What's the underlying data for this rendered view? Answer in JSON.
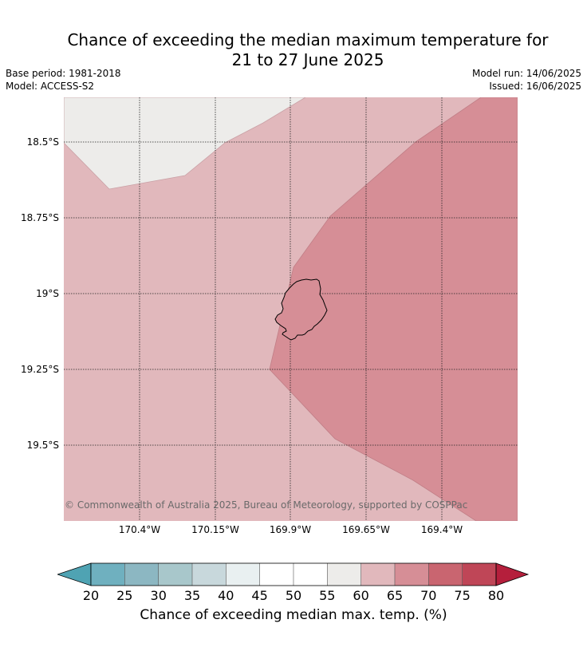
{
  "title_line1": "Chance of exceeding the median maximum temperature for",
  "title_line2": "21 to 27 June 2025",
  "base_period": "Base period: 1981-2018",
  "model": "Model: ACCESS-S2",
  "model_run": "Model run: 14/06/2025",
  "issued": "Issued: 16/06/2025",
  "lat_labels": [
    "18.5°S",
    "18.75°S",
    "19°S",
    "19.25°S",
    "19.5°S"
  ],
  "lon_labels": [
    "170.4°W",
    "170.15°W",
    "169.9°W",
    "169.65°W",
    "169.4°W"
  ],
  "copyright": "© Commonwealth of Australia 2025, Bureau of Meteorology, supported by COSPPac",
  "colorbar": {
    "ticks": [
      "20",
      "25",
      "30",
      "35",
      "40",
      "45",
      "50",
      "55",
      "60",
      "65",
      "70",
      "75",
      "80"
    ],
    "label": "Chance of exceeding median max. temp. (%)",
    "colors": [
      "#4fa3b3",
      "#6fb0bf",
      "#8cb7c2",
      "#a8c7cb",
      "#c8d8dc",
      "#e9f0f1",
      "#ffffff",
      "#ffffff",
      "#edecea",
      "#e1b8bc",
      "#d68e96",
      "#c96570",
      "#bf4657",
      "#b51f3c"
    ]
  },
  "map_colors": {
    "band_55_60": "#edecea",
    "band_60_65": "#e1b8bc",
    "band_65_70": "#d68e96"
  },
  "island_name": ""
}
